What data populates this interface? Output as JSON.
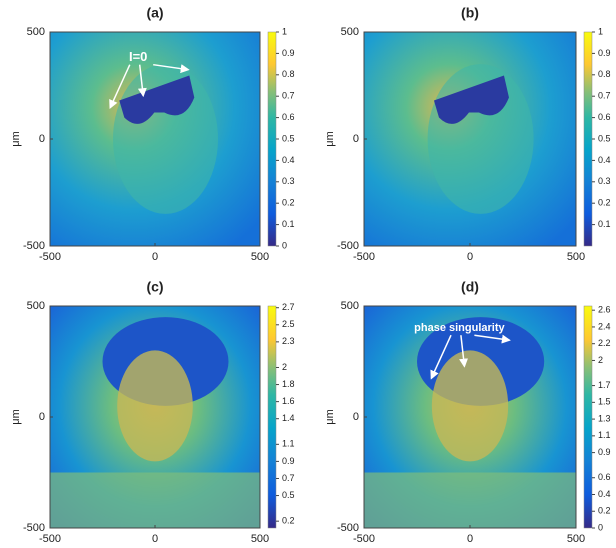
{
  "chart_data": [
    {
      "type": "heatmap",
      "title": "(a)",
      "ylabel": "μm",
      "xlim": [
        -500,
        500
      ],
      "xticks": [
        -500,
        0,
        500
      ],
      "ylim": [
        -500,
        500
      ],
      "yticks": [
        -500,
        0,
        500
      ],
      "colormap": "parula",
      "clim": [
        0,
        1
      ],
      "cticks": [
        0,
        0.1,
        0.2,
        0.3,
        0.4,
        0.5,
        0.6,
        0.7,
        0.8,
        0.9,
        1
      ],
      "annotation": "I=0"
    },
    {
      "type": "heatmap",
      "title": "(b)",
      "ylabel": "μm",
      "xlim": [
        -500,
        500
      ],
      "xticks": [
        -500,
        0,
        500
      ],
      "ylim": [
        -500,
        500
      ],
      "yticks": [
        -500,
        0,
        500
      ],
      "colormap": "parula",
      "clim": [
        0,
        1
      ],
      "cticks": [
        0.1,
        0.2,
        0.3,
        0.4,
        0.5,
        0.6,
        0.7,
        0.8,
        0.9,
        1
      ]
    },
    {
      "type": "heatmap",
      "title": "(c)",
      "ylabel": "μm",
      "xlim": [
        -500,
        500
      ],
      "xticks": [
        -500,
        0,
        500
      ],
      "ylim": [
        -500,
        500
      ],
      "yticks": [
        -500,
        0,
        500
      ],
      "colormap": "parula",
      "clim": [
        0.12,
        2.72
      ],
      "cticks": [
        0.2,
        0.5,
        0.7,
        0.9,
        1.1,
        1.4,
        1.6,
        1.8,
        2,
        2.3,
        2.5,
        2.7
      ]
    },
    {
      "type": "heatmap",
      "title": "(d)",
      "ylabel": "μm",
      "xlim": [
        -500,
        500
      ],
      "xticks": [
        -500,
        0,
        500
      ],
      "ylim": [
        -500,
        500
      ],
      "yticks": [
        -500,
        0,
        500
      ],
      "colormap": "parula",
      "clim": [
        0,
        2.65
      ],
      "cticks": [
        0,
        0.2,
        0.4,
        0.6,
        0.9,
        1.1,
        1.3,
        1.5,
        1.7,
        2,
        2.2,
        2.4,
        2.6
      ],
      "annotation": "phase singularity"
    }
  ]
}
